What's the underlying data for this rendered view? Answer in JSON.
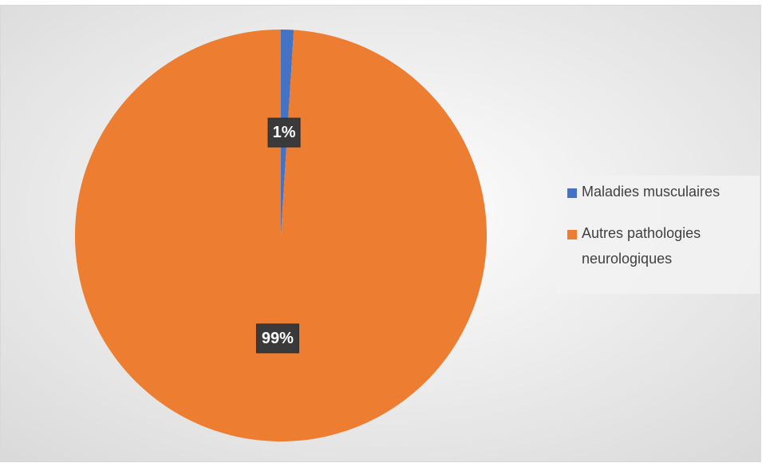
{
  "chart_data": {
    "type": "pie",
    "categories": [
      "Maladies musculaires",
      "Autres pathologies neurologiques"
    ],
    "values": [
      1,
      99
    ],
    "value_labels": [
      "1%",
      "99%"
    ],
    "colors": [
      "#4472c4",
      "#ed7d31"
    ],
    "legend": "right"
  }
}
